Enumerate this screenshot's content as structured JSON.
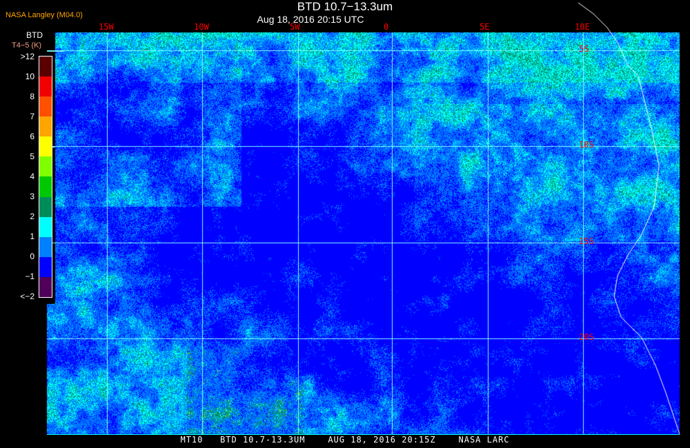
{
  "header": {
    "title": "BTD 10.7−13.3um",
    "subtitle": "Aug 18, 2016 20:15 UTC",
    "credit": "NASA Langley (M04.0)"
  },
  "legend": {
    "title": "BTD",
    "units": "T4−5 (K)",
    "labels": [
      ">12",
      "10",
      "8",
      "7",
      "6",
      "5",
      "4",
      "3",
      "2",
      "1",
      "0",
      "−1",
      "<−2"
    ],
    "colors": [
      "#5a0000",
      "#f00000",
      "#ff5000",
      "#ffa500",
      "#ffff00",
      "#80ff00",
      "#00c800",
      "#008c5a",
      "#00ffff",
      "#0080ff",
      "#0000ff",
      "#50005a"
    ]
  },
  "map": {
    "lon_labels": [
      "15W",
      "10W",
      "5W",
      "0",
      "5E",
      "10E"
    ],
    "lat_labels": [
      "5S",
      "10S",
      "15S",
      "20S"
    ],
    "grid_color": "#80ffff",
    "label_color": "#ff0000",
    "coastline_color": "#ffffff"
  },
  "footer": {
    "text": "MT10   BTD 10.7-13.3UM    AUG 18, 2016 20:15Z    NASA LARC"
  }
}
